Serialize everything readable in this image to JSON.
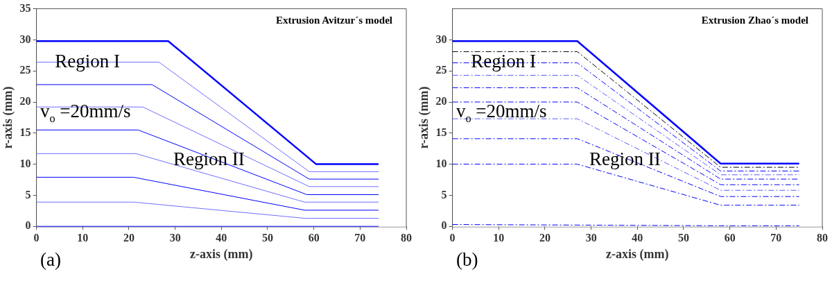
{
  "chart_data": [
    {
      "type": "line",
      "title": "Extrusion Avitzur´s model",
      "xlabel": "z-axis (mm)",
      "ylabel": "r-axis (mm)",
      "xlim": [
        0,
        80
      ],
      "xticks": [
        0,
        10,
        20,
        30,
        40,
        50,
        60,
        70,
        80
      ],
      "ylim": [
        0,
        35
      ],
      "yticks": [
        0,
        5,
        10,
        15,
        20,
        25,
        30,
        35
      ],
      "grid": false,
      "legend": false,
      "marker": "none",
      "line_style": "solid",
      "annotations": [
        "Region I",
        "v$_{o}$ =20mm/s",
        "Region II",
        "(a)"
      ],
      "series": [
        {
          "color": "#0000ff",
          "x": [
            0,
            28.5,
            60.5,
            74
          ],
          "values": [
            29.8,
            29.8,
            10,
            10
          ]
        },
        {
          "color": "#6f6fff",
          "x": [
            0,
            26.5,
            59,
            74
          ],
          "values": [
            26.4,
            26.4,
            8.8,
            8.8
          ]
        },
        {
          "color": "#0000ff",
          "x": [
            0,
            25,
            59,
            74
          ],
          "values": [
            22.8,
            22.8,
            7.6,
            7.6
          ]
        },
        {
          "color": "#6f6fff",
          "x": [
            0,
            23,
            59,
            74
          ],
          "values": [
            19.2,
            19.2,
            6.4,
            6.4
          ]
        },
        {
          "color": "#0000ff",
          "x": [
            0,
            22,
            58.5,
            74
          ],
          "values": [
            15.5,
            15.5,
            5.1,
            5.1
          ]
        },
        {
          "color": "#6f6fff",
          "x": [
            0,
            21.5,
            58,
            74
          ],
          "values": [
            11.7,
            11.7,
            3.9,
            3.9
          ]
        },
        {
          "color": "#0000ff",
          "x": [
            0,
            21,
            58,
            74
          ],
          "values": [
            7.9,
            7.9,
            2.6,
            2.6
          ]
        },
        {
          "color": "#6f6fff",
          "x": [
            0,
            21,
            58,
            74
          ],
          "values": [
            3.9,
            3.9,
            1.3,
            1.3
          ]
        },
        {
          "color": "#0000ff",
          "x": [
            0,
            74
          ],
          "values": [
            0,
            0
          ]
        }
      ]
    },
    {
      "type": "line",
      "title": "Extrusion Zhao´s model",
      "xlabel": "z-axis (mm)",
      "ylabel": "r-axis (mm)",
      "xlim": [
        0,
        80
      ],
      "xticks": [
        0,
        10,
        20,
        30,
        40,
        50,
        60,
        70,
        80
      ],
      "ylim": [
        0,
        35
      ],
      "yticks": [
        0,
        5,
        10,
        15,
        20,
        25,
        30
      ],
      "grid": false,
      "legend": false,
      "marker": "none",
      "line_style": "dashed",
      "annotations": [
        "Region I",
        "v$_{o}$ =20mm/s",
        "Region II",
        "(b)"
      ],
      "series": [
        {
          "color": "#0000ff",
          "line_style": "solid",
          "x": [
            0,
            27,
            58,
            75
          ],
          "values": [
            29.8,
            29.8,
            10.1,
            10.1
          ]
        },
        {
          "color": "#000000",
          "x": [
            0,
            27,
            58,
            75
          ],
          "values": [
            28.1,
            28.1,
            9.5,
            9.5
          ]
        },
        {
          "color": "#0000ff",
          "x": [
            0,
            27,
            58,
            75
          ],
          "values": [
            26.3,
            26.3,
            8.9,
            8.9
          ]
        },
        {
          "color": "#5a5aff",
          "x": [
            0,
            27,
            58,
            75
          ],
          "values": [
            24.3,
            24.3,
            8.3,
            8.3
          ]
        },
        {
          "color": "#0000ff",
          "x": [
            0,
            27,
            58,
            75
          ],
          "values": [
            22.3,
            22.3,
            7.6,
            7.6
          ]
        },
        {
          "color": "#0000ff",
          "x": [
            0,
            27,
            58,
            75
          ],
          "values": [
            20,
            20,
            6.7,
            6.7
          ]
        },
        {
          "color": "#5a5aff",
          "x": [
            0,
            27,
            58,
            75
          ],
          "values": [
            17.3,
            17.3,
            5.8,
            5.8
          ]
        },
        {
          "color": "#0000ff",
          "x": [
            0,
            27,
            58,
            75
          ],
          "values": [
            14.1,
            14.1,
            4.8,
            4.8
          ]
        },
        {
          "color": "#0000ff",
          "x": [
            0,
            27,
            58,
            75
          ],
          "values": [
            10,
            10,
            3.4,
            3.4
          ]
        },
        {
          "color": "#0000ff",
          "x": [
            0,
            58,
            75
          ],
          "values": [
            0.3,
            0.1,
            0.1
          ]
        }
      ]
    }
  ]
}
